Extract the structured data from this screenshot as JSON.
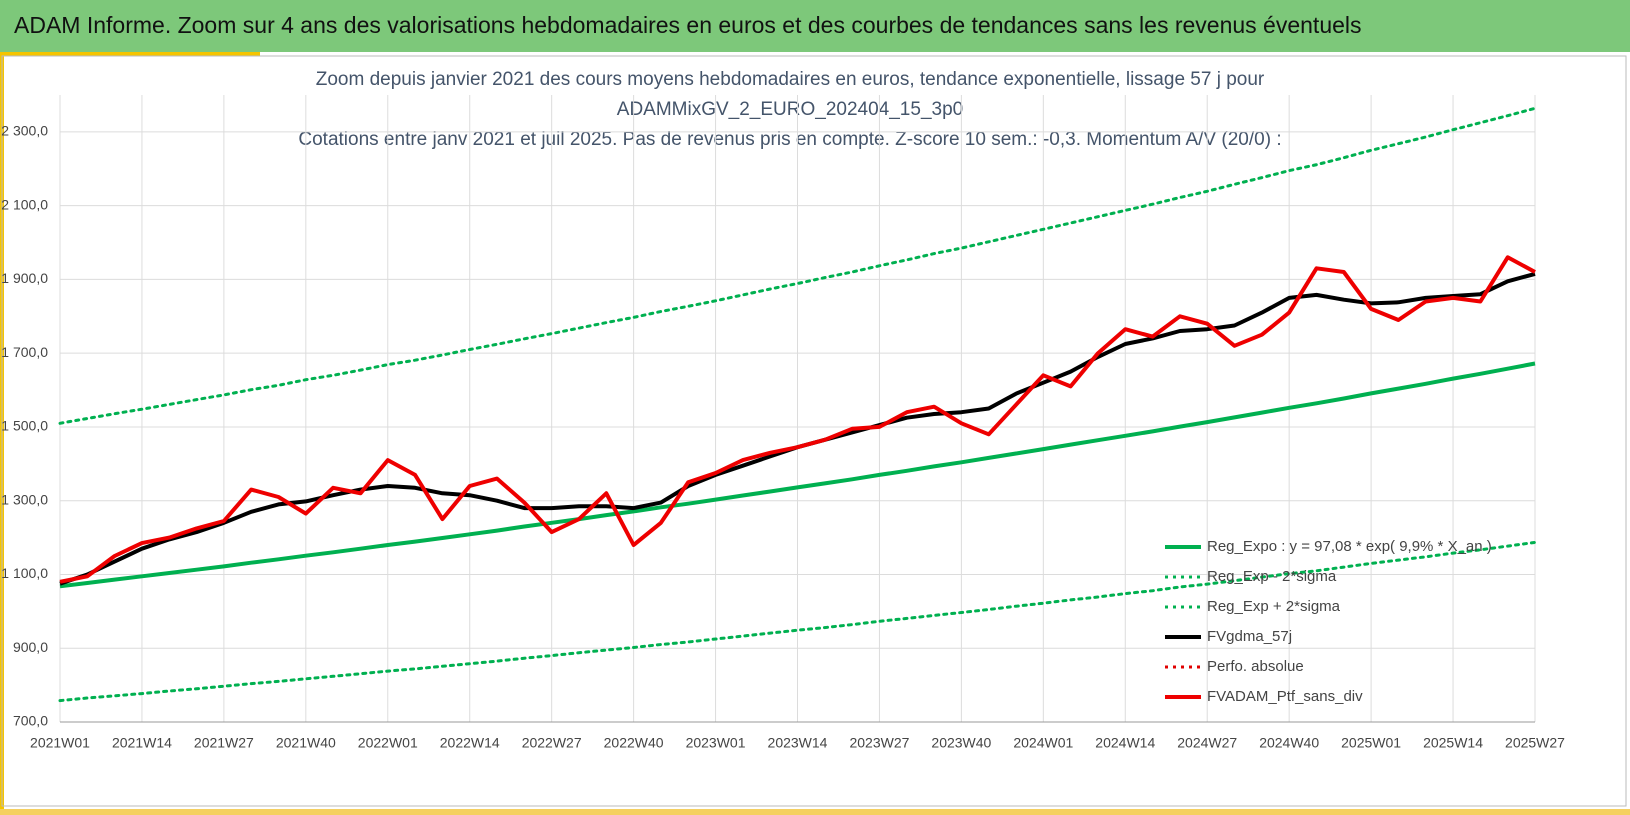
{
  "header": {
    "title": "ADAM Informe. Zoom sur 4 ans des valorisations hebdomadaires en euros et des courbes de tendances sans les revenus éventuels"
  },
  "chart_data": {
    "type": "line",
    "title": [
      "Zoom depuis janvier 2021 des cours moyens hebdomadaires  en euros, tendance exponentielle, lissage 57 j pour",
      "ADAMMixGV_2_EURO_202404_15_3p0",
      "Cotations  entre janv 2021 et juil 2025. Pas de revenus pris en compte. Z-score 10 sem.: -0,3. Momentum  A/V (20/0) :"
    ],
    "categories": [
      "2021W01",
      null,
      null,
      "2021W14",
      null,
      null,
      "2021W27",
      null,
      null,
      "2021W40",
      null,
      null,
      "2022W01",
      null,
      null,
      "2022W14",
      null,
      null,
      "2022W27",
      null,
      null,
      "2022W40",
      null,
      null,
      "2023W01",
      null,
      null,
      "2023W14",
      null,
      null,
      "2023W27",
      null,
      null,
      "2023W40",
      null,
      null,
      "2024W01",
      null,
      null,
      "2024W14",
      null,
      null,
      "2024W27",
      null,
      null,
      "2024W40",
      null,
      null,
      "2025W01",
      null,
      null,
      "2025W14",
      null,
      null,
      "2025W27"
    ],
    "ylim": [
      700,
      2400
    ],
    "yticks": [
      {
        "value": 700,
        "label": "700,0"
      },
      {
        "value": 900,
        "label": "900,0"
      },
      {
        "value": 1100,
        "label": "1 100,0"
      },
      {
        "value": 1300,
        "label": "1 300,0"
      },
      {
        "value": 1500,
        "label": "1 500,0"
      },
      {
        "value": 1700,
        "label": "1 700,0"
      },
      {
        "value": 1900,
        "label": "1 900,0"
      },
      {
        "value": 2100,
        "label": "2 100,0"
      },
      {
        "value": 2300,
        "label": "2 300,0"
      }
    ],
    "grid": true,
    "legend": "bottom-right",
    "series": [
      {
        "name": "Reg_Expo : y = 97,08 * exp( 9,9% * X_an )",
        "color": "#00b050",
        "dash": "solid",
        "width": 4,
        "values": [
          1068,
          1077,
          1086,
          1095,
          1104,
          1113,
          1122,
          1132,
          1141,
          1151,
          1160,
          1170,
          1180,
          1189,
          1199,
          1209,
          1219,
          1230,
          1240,
          1250,
          1261,
          1271,
          1282,
          1292,
          1303,
          1314,
          1325,
          1336,
          1347,
          1358,
          1370,
          1381,
          1393,
          1404,
          1416,
          1428,
          1440,
          1452,
          1464,
          1476,
          1488,
          1501,
          1513,
          1526,
          1539,
          1552,
          1564,
          1577,
          1591,
          1604,
          1617,
          1631,
          1644,
          1658,
          1672
        ]
      },
      {
        "name": "Reg_Exp - 2*sigma",
        "color": "#00b050",
        "dash": "dotted",
        "width": 3,
        "values": [
          758,
          765,
          771,
          777,
          784,
          790,
          797,
          804,
          810,
          817,
          824,
          831,
          838,
          844,
          851,
          858,
          865,
          873,
          880,
          888,
          895,
          902,
          910,
          917,
          925,
          933,
          941,
          949,
          956,
          964,
          973,
          981,
          989,
          997,
          1005,
          1014,
          1022,
          1031,
          1039,
          1048,
          1056,
          1066,
          1074,
          1083,
          1093,
          1102,
          1110,
          1120,
          1130,
          1139,
          1148,
          1158,
          1167,
          1177,
          1187
        ]
      },
      {
        "name": "Reg_Exp + 2*sigma",
        "color": "#00b050",
        "dash": "dotted",
        "width": 3,
        "values": [
          1510,
          1523,
          1536,
          1548,
          1561,
          1574,
          1587,
          1601,
          1613,
          1628,
          1640,
          1654,
          1669,
          1681,
          1695,
          1710,
          1724,
          1739,
          1753,
          1768,
          1783,
          1797,
          1813,
          1827,
          1842,
          1858,
          1874,
          1889,
          1905,
          1920,
          1937,
          1953,
          1970,
          1985,
          2002,
          2019,
          2036,
          2053,
          2070,
          2087,
          2104,
          2122,
          2139,
          2158,
          2176,
          2195,
          2211,
          2230,
          2250,
          2268,
          2286,
          2306,
          2325,
          2344,
          2364
        ]
      },
      {
        "name": "FVgdma_57j",
        "color": "#000000",
        "dash": "solid",
        "width": 4,
        "values": [
          1075,
          1100,
          1135,
          1170,
          1195,
          1215,
          1240,
          1270,
          1290,
          1298,
          1315,
          1330,
          1340,
          1335,
          1320,
          1315,
          1300,
          1280,
          1280,
          1285,
          1285,
          1280,
          1295,
          1340,
          1370,
          1395,
          1420,
          1445,
          1465,
          1485,
          1505,
          1525,
          1535,
          1540,
          1550,
          1590,
          1620,
          1650,
          1690,
          1725,
          1740,
          1760,
          1765,
          1775,
          1810,
          1850,
          1858,
          1845,
          1835,
          1838,
          1850,
          1855,
          1860,
          1895,
          1915
        ]
      },
      {
        "name": "Perfo. absolue",
        "color": "#e00000",
        "dash": "dotted",
        "width": 3,
        "values": [
          null,
          null,
          null,
          null,
          null,
          null,
          null,
          null,
          null,
          null,
          null,
          null,
          null,
          null,
          null,
          null,
          null,
          null,
          null,
          null,
          null,
          null,
          null,
          null,
          null,
          null,
          null,
          null,
          null,
          null,
          null,
          null,
          null,
          null,
          null,
          null,
          null,
          null,
          null,
          null,
          null,
          null,
          null,
          null,
          null,
          null,
          null,
          null,
          null,
          null,
          null,
          null,
          null,
          null,
          null
        ]
      },
      {
        "name": "FVADAM_Ptf_sans_div",
        "color": "#ee0000",
        "dash": "solid",
        "width": 4,
        "values": [
          1080,
          1095,
          1150,
          1185,
          1200,
          1225,
          1245,
          1330,
          1310,
          1265,
          1335,
          1320,
          1410,
          1370,
          1250,
          1340,
          1360,
          1295,
          1215,
          1250,
          1320,
          1180,
          1240,
          1350,
          1375,
          1410,
          1430,
          1445,
          1465,
          1495,
          1500,
          1540,
          1555,
          1510,
          1480,
          1560,
          1640,
          1610,
          1700,
          1765,
          1745,
          1800,
          1780,
          1720,
          1750,
          1810,
          1930,
          1920,
          1820,
          1790,
          1840,
          1850,
          1840,
          1960,
          1920
        ]
      }
    ]
  }
}
